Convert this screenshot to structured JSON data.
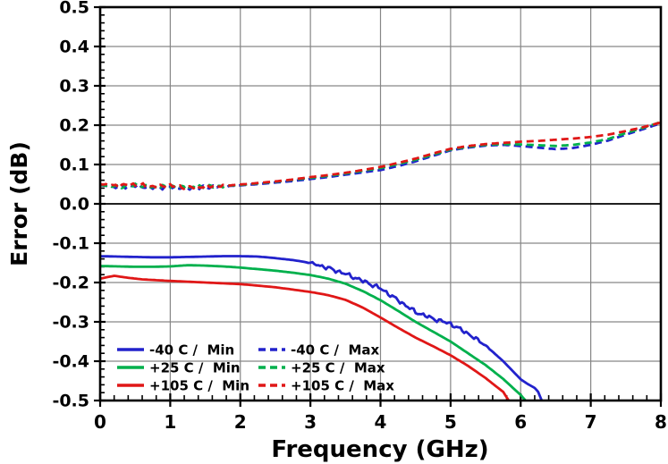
{
  "chart_data": {
    "type": "line",
    "xlabel": "Frequency (GHz)",
    "ylabel": "Error (dB)",
    "background": "#FFFFFF",
    "axes": {
      "x": {
        "min": 0,
        "max": 8,
        "major_step": 1,
        "minor_step": 0.2,
        "tick_labels": [
          "0",
          "1",
          "2",
          "3",
          "4",
          "5",
          "6",
          "7",
          "8"
        ]
      },
      "y": {
        "min": -0.5,
        "max": 0.5,
        "major_step": 0.1,
        "minor_step": 0.02,
        "tick_labels": [
          "0.5",
          "0.4",
          "0.3",
          "0.2",
          "0.1",
          "0.0",
          "-0.1",
          "-0.2",
          "-0.3",
          "-0.4",
          "-0.5"
        ]
      }
    },
    "grid": {
      "major_color": "#868686",
      "zero_line_color": "#000000",
      "frame_color": "#000000"
    },
    "legend": {
      "position": "inside-bottom-left",
      "columns": 2
    },
    "series": [
      {
        "id": "minus40c-min",
        "legend_label": "-40 C /  Min",
        "color": "#2222CC",
        "dash": false,
        "noise": {
          "amp": 0.005,
          "from": 2.9,
          "to": 5.6,
          "phase": 1.0
        },
        "x": [
          0,
          0.25,
          0.5,
          0.75,
          1,
          1.25,
          1.5,
          1.75,
          2,
          2.25,
          2.5,
          2.75,
          3,
          3.25,
          3.5,
          3.75,
          4,
          4.25,
          4.5,
          4.75,
          5,
          5.25,
          5.5,
          5.75,
          6,
          6.1,
          6.2,
          6.25,
          6.3
        ],
        "y": [
          -0.133,
          -0.134,
          -0.135,
          -0.136,
          -0.136,
          -0.135,
          -0.134,
          -0.133,
          -0.133,
          -0.134,
          -0.138,
          -0.143,
          -0.15,
          -0.163,
          -0.178,
          -0.196,
          -0.215,
          -0.245,
          -0.275,
          -0.292,
          -0.305,
          -0.33,
          -0.36,
          -0.4,
          -0.446,
          -0.458,
          -0.468,
          -0.478,
          -0.5
        ]
      },
      {
        "id": "plus25c-min",
        "legend_label": "+25 C /  Min",
        "color": "#00B04C",
        "dash": false,
        "x": [
          0,
          0.25,
          0.5,
          0.75,
          1,
          1.25,
          1.5,
          1.75,
          2,
          2.25,
          2.5,
          2.75,
          3,
          3.25,
          3.5,
          3.75,
          4,
          4.25,
          4.5,
          4.75,
          5,
          5.25,
          5.5,
          5.75,
          6,
          6.07
        ],
        "y": [
          -0.158,
          -0.159,
          -0.16,
          -0.16,
          -0.159,
          -0.156,
          -0.157,
          -0.159,
          -0.162,
          -0.166,
          -0.17,
          -0.175,
          -0.181,
          -0.19,
          -0.203,
          -0.222,
          -0.245,
          -0.272,
          -0.3,
          -0.325,
          -0.35,
          -0.38,
          -0.41,
          -0.445,
          -0.486,
          -0.5
        ]
      },
      {
        "id": "plus105c-min",
        "legend_label": "+105 C /  Min",
        "color": "#E01717",
        "dash": false,
        "x": [
          0,
          0.2,
          0.4,
          0.6,
          0.8,
          1,
          1.25,
          1.5,
          1.75,
          2,
          2.25,
          2.5,
          2.75,
          3,
          3.25,
          3.5,
          3.75,
          4,
          4.25,
          4.5,
          4.75,
          5,
          5.25,
          5.5,
          5.75,
          5.83
        ],
        "y": [
          -0.19,
          -0.183,
          -0.188,
          -0.192,
          -0.194,
          -0.196,
          -0.198,
          -0.2,
          -0.202,
          -0.204,
          -0.208,
          -0.212,
          -0.218,
          -0.224,
          -0.232,
          -0.244,
          -0.264,
          -0.289,
          -0.315,
          -0.34,
          -0.362,
          -0.385,
          -0.412,
          -0.443,
          -0.478,
          -0.5
        ]
      },
      {
        "id": "minus40c-max",
        "legend_label": "-40 C /  Max",
        "color": "#2222CC",
        "dash": true,
        "noise": {
          "amp": 0.0045,
          "from": 0,
          "to": 1.9,
          "phase": 0.0
        },
        "x": [
          0,
          0.25,
          0.5,
          0.75,
          1,
          1.25,
          1.5,
          1.75,
          2,
          2.25,
          2.5,
          2.75,
          3,
          3.25,
          3.5,
          3.75,
          4,
          4.25,
          4.5,
          4.75,
          5,
          5.25,
          5.5,
          5.75,
          6,
          6.25,
          6.5,
          6.75,
          7,
          7.25,
          7.5,
          7.75,
          8
        ],
        "y": [
          0.047,
          0.043,
          0.046,
          0.041,
          0.043,
          0.04,
          0.042,
          0.044,
          0.047,
          0.05,
          0.054,
          0.058,
          0.063,
          0.068,
          0.074,
          0.08,
          0.086,
          0.096,
          0.108,
          0.122,
          0.136,
          0.143,
          0.148,
          0.15,
          0.147,
          0.143,
          0.139,
          0.142,
          0.15,
          0.161,
          0.176,
          0.19,
          0.205
        ]
      },
      {
        "id": "plus25c-max",
        "legend_label": "+25 C /  Max",
        "color": "#00B04C",
        "dash": true,
        "noise": {
          "amp": 0.0045,
          "from": 0,
          "to": 1.9,
          "phase": 2.1
        },
        "x": [
          0,
          0.25,
          0.5,
          0.75,
          1,
          1.25,
          1.5,
          1.75,
          2,
          2.25,
          2.5,
          2.75,
          3,
          3.25,
          3.5,
          3.75,
          4,
          4.25,
          4.5,
          4.75,
          5,
          5.25,
          5.5,
          5.75,
          6,
          6.25,
          6.5,
          6.75,
          7,
          7.25,
          7.5,
          7.75,
          8
        ],
        "y": [
          0.048,
          0.044,
          0.047,
          0.042,
          0.044,
          0.041,
          0.043,
          0.045,
          0.048,
          0.052,
          0.056,
          0.061,
          0.066,
          0.071,
          0.077,
          0.084,
          0.091,
          0.101,
          0.112,
          0.125,
          0.138,
          0.145,
          0.15,
          0.152,
          0.151,
          0.149,
          0.147,
          0.15,
          0.156,
          0.165,
          0.18,
          0.193,
          0.208
        ]
      },
      {
        "id": "plus105c-max",
        "legend_label": "+105 C /  Max",
        "color": "#E01717",
        "dash": true,
        "noise": {
          "amp": 0.0045,
          "from": 0,
          "to": 1.9,
          "phase": 4.2
        },
        "x": [
          0,
          0.25,
          0.5,
          0.75,
          1,
          1.25,
          1.5,
          1.75,
          2,
          2.25,
          2.5,
          2.75,
          3,
          3.25,
          3.5,
          3.75,
          4,
          4.25,
          4.5,
          4.75,
          5,
          5.25,
          5.5,
          5.75,
          6,
          6.25,
          6.5,
          6.75,
          7,
          7.25,
          7.5,
          7.75,
          8
        ],
        "y": [
          0.05,
          0.046,
          0.049,
          0.044,
          0.046,
          0.042,
          0.044,
          0.046,
          0.049,
          0.053,
          0.057,
          0.062,
          0.068,
          0.073,
          0.079,
          0.086,
          0.094,
          0.104,
          0.115,
          0.128,
          0.14,
          0.147,
          0.152,
          0.155,
          0.158,
          0.16,
          0.163,
          0.166,
          0.17,
          0.176,
          0.185,
          0.195,
          0.207
        ]
      }
    ]
  }
}
